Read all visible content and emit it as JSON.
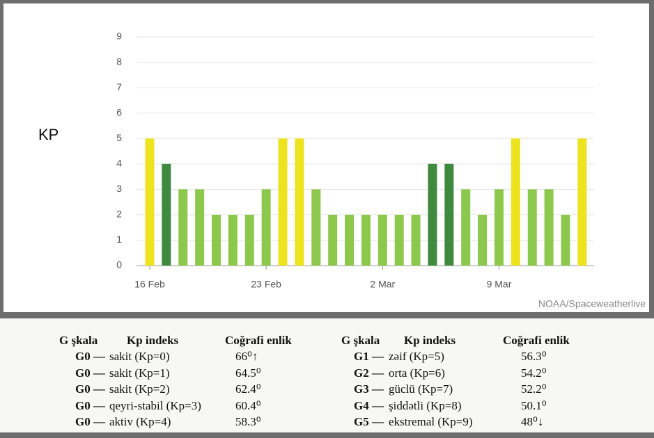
{
  "chart_data": {
    "type": "bar",
    "y_label": "KP",
    "source": "NOAA/Spaceweatherlive",
    "categories": [
      "16 Feb",
      null,
      null,
      null,
      null,
      null,
      null,
      "23 Feb",
      null,
      null,
      null,
      null,
      null,
      null,
      "2 Mar",
      null,
      null,
      null,
      null,
      null,
      null,
      "9 Mar",
      null,
      null,
      null,
      null,
      null
    ],
    "values": [
      5,
      4,
      3,
      3,
      2,
      2,
      2,
      3,
      5,
      5,
      3,
      2,
      2,
      2,
      2,
      2,
      2,
      4,
      4,
      3,
      2,
      3,
      5,
      3,
      3,
      2,
      5
    ],
    "colors": [
      "#ede31f",
      "#3f8a3f",
      "#8cc84b",
      "#8cc84b",
      "#8cc84b",
      "#8cc84b",
      "#8cc84b",
      "#8cc84b",
      "#ede31f",
      "#ede31f",
      "#8cc84b",
      "#8cc84b",
      "#8cc84b",
      "#8cc84b",
      "#8cc84b",
      "#8cc84b",
      "#8cc84b",
      "#3f8a3f",
      "#3f8a3f",
      "#8cc84b",
      "#8cc84b",
      "#8cc84b",
      "#ede31f",
      "#8cc84b",
      "#8cc84b",
      "#8cc84b",
      "#ede31f"
    ],
    "ylim": [
      0,
      9
    ],
    "yticks": [
      0,
      1,
      2,
      3,
      4,
      5,
      6,
      7,
      8,
      9
    ],
    "grid": true
  },
  "table": {
    "left": {
      "header": [
        "G şkala",
        "Kp indeks",
        "Coğrafi enlik"
      ],
      "rows": [
        [
          "G0 —",
          "sakit (Kp=0)",
          "66⁰↑"
        ],
        [
          "G0 —",
          "sakit (Kp=1)",
          "64.5⁰"
        ],
        [
          "G0 —",
          "sakit (Kp=2)",
          "62.4⁰"
        ],
        [
          "G0 —",
          "qeyri-stabil (Kp=3)",
          "60.4⁰"
        ],
        [
          "G0 —",
          "aktiv (Kp=4)",
          "58.3⁰"
        ]
      ]
    },
    "right": {
      "header": [
        "G şkala",
        "Kp indeks",
        "Coğrafi enlik"
      ],
      "rows": [
        [
          "G1 —",
          "zəif (Kp=5)",
          "56.3⁰"
        ],
        [
          "G2 —",
          "orta (Kp=6)",
          "54.2⁰"
        ],
        [
          "G3 —",
          "güclü (Kp=7)",
          "52.2⁰"
        ],
        [
          "G4 —",
          "şiddətli (Kp=8)",
          "50.1⁰"
        ],
        [
          "G5 —",
          "ekstremal (Kp=9)",
          "48⁰↓"
        ]
      ]
    }
  }
}
